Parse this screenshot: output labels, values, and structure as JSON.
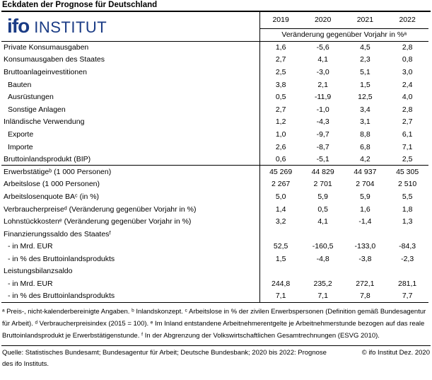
{
  "page_title": "Eckdaten der Prognose für Deutschland",
  "logo": {
    "brand": "ifo",
    "brand_suffix": "INSTITUT",
    "color": "#1a3b85"
  },
  "table": {
    "year_headers": [
      "2019",
      "2020",
      "2021",
      "2022"
    ],
    "unit_header": "Veränderung gegenüber Vorjahr in %ᵃ",
    "rows": [
      {
        "label": "Private Konsumausgaben",
        "indent": 0,
        "values": [
          "1,6",
          "-5,6",
          "4,5",
          "2,8"
        ]
      },
      {
        "label": "Konsumausgaben des Staates",
        "indent": 0,
        "values": [
          "2,7",
          "4,1",
          "2,3",
          "0,8"
        ]
      },
      {
        "label": "Bruttoanlageinvestitionen",
        "indent": 0,
        "values": [
          "2,5",
          "-3,0",
          "5,1",
          "3,0"
        ]
      },
      {
        "label": "Bauten",
        "indent": 1,
        "values": [
          "3,8",
          "2,1",
          "1,5",
          "2,4"
        ]
      },
      {
        "label": "Ausrüstungen",
        "indent": 1,
        "values": [
          "0,5",
          "-11,9",
          "12,5",
          "4,0"
        ]
      },
      {
        "label": "Sonstige Anlagen",
        "indent": 1,
        "values": [
          "2,7",
          "-1,0",
          "3,4",
          "2,8"
        ]
      },
      {
        "label": "Inländische Verwendung",
        "indent": 0,
        "values": [
          "1,2",
          "-4,3",
          "3,1",
          "2,7"
        ]
      },
      {
        "label": "Exporte",
        "indent": 1,
        "values": [
          "1,0",
          "-9,7",
          "8,8",
          "6,1"
        ]
      },
      {
        "label": "Importe",
        "indent": 1,
        "values": [
          "2,6",
          "-8,7",
          "6,8",
          "7,1"
        ]
      },
      {
        "label": "Bruttoinlandsprodukt (BIP)",
        "indent": 0,
        "values": [
          "0,6",
          "-5,1",
          "4,2",
          "2,5"
        ],
        "section_end": true
      },
      {
        "label": "Erwerbstätigeᵇ (1 000 Personen)",
        "indent": 0,
        "values": [
          "45 269",
          "44 829",
          "44 937",
          "45 305"
        ]
      },
      {
        "label": "Arbeitslose (1 000 Personen)",
        "indent": 0,
        "values": [
          "2 267",
          "2 701",
          "2 704",
          "2 510"
        ]
      },
      {
        "label": "Arbeitslosenquote BAᶜ (in %)",
        "indent": 0,
        "values": [
          "5,0",
          "5,9",
          "5,9",
          "5,5"
        ]
      },
      {
        "label": "Verbraucherpreiseᵈ (Veränderung gegenüber Vorjahr in %)",
        "indent": 0,
        "values": [
          "1,4",
          "0,5",
          "1,6",
          "1,8"
        ]
      },
      {
        "label": "Lohnstückkostenᵉ (Veränderung gegenüber Vorjahr in %)",
        "indent": 0,
        "values": [
          "3,2",
          "4,1",
          "-1,4",
          "1,3"
        ]
      },
      {
        "label": "Finanzierungssaldo des Staatesᶠ",
        "indent": 0,
        "values": [
          "",
          "",
          "",
          ""
        ]
      },
      {
        "label": "- in Mrd. EUR",
        "indent": 1,
        "values": [
          "52,5",
          "-160,5",
          "-133,0",
          "-84,3"
        ]
      },
      {
        "label": "- in % des Bruttoinlandsprodukts",
        "indent": 1,
        "values": [
          "1,5",
          "-4,8",
          "-3,8",
          "-2,3"
        ]
      },
      {
        "label": "Leistungsbilanzsaldo",
        "indent": 0,
        "values": [
          "",
          "",
          "",
          ""
        ]
      },
      {
        "label": "- in Mrd. EUR",
        "indent": 1,
        "values": [
          "244,8",
          "235,2",
          "272,1",
          "281,1"
        ]
      },
      {
        "label": "- in % des Bruttoinlandsprodukts",
        "indent": 1,
        "values": [
          "7,1",
          "7,1",
          "7,8",
          "7,7"
        ]
      }
    ]
  },
  "footnotes": "ᵃ Preis-, nicht-kalenderbereinigte Angaben. ᵇ Inlandskonzept. ᶜ Arbeitslose in % der zivilen Erwerbspersonen (Definition gemäß Bundesagentur für Arbeit). ᵈ Verbraucherpreisindex (2015 = 100). ᵉ Im Inland entstandene Arbeitnehmerentgelte je Arbeitnehmerstunde bezogen auf das reale Bruttoinlandsprodukt je Erwerbstätigenstunde. ᶠ In der Abgrenzung der Volkswirtschaftlichen Gesamtrechnungen (ESVG 2010).",
  "source": {
    "text": "Quelle: Statistisches Bundesamt; Bundesagentur für Arbeit; Deutsche Bundesbank; 2020 bis 2022: Prognose des ifo Instituts.",
    "copyright": "© ifo Institut Dez. 2020"
  },
  "colors": {
    "brand_blue": "#1a3b85",
    "line": "#000000",
    "background": "#ffffff"
  }
}
